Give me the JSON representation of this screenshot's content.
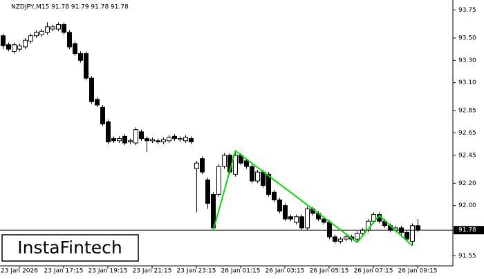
{
  "chart_data": {
    "type": "candlestick",
    "title": "NZDJPY,M15  91.78 91.79 91.78 91.78",
    "logo": "InstaFintech",
    "categories": [
      null,
      null,
      null,
      "23 Jan 2026",
      null,
      null,
      null,
      null,
      null,
      null,
      null,
      "23 Jan 17:15",
      null,
      null,
      null,
      null,
      null,
      null,
      null,
      "23 Jan 19:15",
      null,
      null,
      null,
      null,
      null,
      null,
      null,
      "23 Jan 21:15",
      null,
      null,
      null,
      null,
      null,
      null,
      null,
      "23 Jan 23:15",
      null,
      null,
      null,
      null,
      null,
      null,
      null,
      "26 Jan 01:15",
      null,
      null,
      null,
      null,
      null,
      null,
      null,
      "26 Jan 03:15",
      null,
      null,
      null,
      null,
      null,
      null,
      null,
      "26 Jan 05:15",
      null,
      null,
      null,
      null,
      null,
      null,
      null,
      "26 Jan 07:15",
      null,
      null,
      null,
      null,
      null,
      null,
      null,
      "26 Jan 09:15"
    ],
    "open": [
      93.52,
      93.44,
      93.38,
      93.4,
      93.42,
      93.47,
      93.52,
      93.53,
      93.55,
      93.58,
      93.58,
      93.62,
      93.55,
      93.45,
      93.36,
      93.36,
      93.14,
      92.95,
      92.88,
      92.75,
      92.6,
      92.58,
      92.62,
      92.57,
      92.56,
      92.66,
      92.6,
      92.58,
      92.58,
      92.57,
      92.58,
      92.62,
      92.59,
      92.58,
      92.6,
      92.33,
      92.42,
      92.23,
      92.1,
      92.1,
      92.35,
      92.45,
      92.28,
      92.45,
      92.4,
      92.35,
      92.22,
      92.3,
      92.28,
      92.12,
      92.05,
      92.0,
      91.9,
      91.85,
      91.9,
      91.8,
      91.97,
      91.93,
      91.88,
      91.85,
      91.72,
      91.68,
      91.7,
      91.72,
      91.7,
      91.75,
      91.78,
      91.86,
      91.92,
      91.86,
      91.82,
      91.78,
      91.8,
      91.76,
      91.68,
      91.82
    ],
    "high": [
      93.54,
      93.46,
      93.46,
      93.45,
      93.5,
      93.54,
      93.57,
      93.58,
      93.64,
      93.62,
      93.64,
      93.64,
      93.57,
      93.47,
      93.38,
      93.38,
      93.16,
      92.97,
      92.9,
      92.77,
      92.62,
      92.62,
      92.64,
      92.6,
      92.7,
      92.68,
      92.62,
      92.61,
      92.6,
      92.61,
      92.63,
      92.64,
      92.62,
      92.63,
      92.62,
      92.4,
      92.44,
      92.25,
      92.12,
      92.37,
      92.47,
      92.47,
      92.49,
      92.47,
      92.42,
      92.37,
      92.32,
      92.32,
      92.3,
      92.14,
      92.07,
      92.02,
      91.92,
      91.92,
      91.92,
      91.99,
      91.99,
      91.95,
      91.9,
      91.87,
      91.74,
      91.72,
      91.74,
      91.74,
      91.77,
      91.8,
      91.88,
      91.94,
      91.94,
      91.88,
      91.84,
      91.82,
      91.82,
      91.78,
      91.84,
      91.88
    ],
    "low": [
      93.4,
      93.38,
      93.36,
      93.38,
      93.4,
      93.45,
      93.5,
      93.51,
      93.53,
      93.56,
      93.56,
      93.53,
      93.4,
      93.34,
      93.28,
      93.12,
      92.91,
      92.88,
      92.71,
      92.55,
      92.56,
      92.56,
      92.54,
      92.55,
      92.54,
      92.58,
      92.48,
      92.56,
      92.55,
      92.55,
      92.56,
      92.58,
      92.57,
      92.56,
      92.55,
      91.94,
      92.28,
      91.97,
      91.78,
      92.08,
      92.33,
      92.28,
      92.26,
      92.36,
      92.33,
      92.2,
      92.2,
      92.16,
      92.08,
      92.03,
      91.93,
      91.86,
      91.86,
      91.83,
      91.78,
      91.78,
      91.91,
      91.86,
      91.83,
      91.7,
      91.66,
      91.66,
      91.68,
      91.68,
      91.68,
      91.73,
      91.76,
      91.84,
      91.84,
      91.8,
      91.76,
      91.76,
      91.74,
      91.68,
      91.64,
      91.76
    ],
    "close": [
      93.43,
      93.4,
      93.44,
      93.43,
      93.48,
      93.52,
      93.55,
      93.56,
      93.6,
      93.6,
      93.62,
      93.55,
      93.42,
      93.36,
      93.3,
      93.14,
      92.93,
      92.9,
      92.73,
      92.57,
      92.58,
      92.6,
      92.56,
      92.58,
      92.68,
      92.6,
      92.58,
      92.59,
      92.57,
      92.59,
      92.61,
      92.6,
      92.6,
      92.61,
      92.57,
      92.38,
      92.3,
      92.02,
      91.8,
      92.35,
      92.45,
      92.3,
      92.45,
      92.38,
      92.35,
      92.22,
      92.3,
      92.18,
      92.1,
      92.05,
      91.95,
      91.88,
      91.88,
      91.9,
      91.8,
      91.97,
      91.93,
      91.88,
      91.85,
      91.72,
      91.68,
      91.7,
      91.72,
      91.7,
      91.75,
      91.78,
      91.86,
      91.92,
      91.86,
      91.82,
      91.78,
      91.8,
      91.76,
      91.7,
      91.82,
      91.78
    ],
    "pattern": {
      "color": "#00dd00",
      "x": [
        38,
        42,
        64,
        68,
        74
      ],
      "values": [
        91.78,
        92.49,
        91.67,
        91.91,
        91.64
      ]
    },
    "last_price": 91.78,
    "ylim": [
      91.46,
      93.84
    ],
    "yticks": [
      93.75,
      {
        "value": 93.5,
        "label": "93.50"
      },
      {
        "value": 93.3,
        "label": "93.30"
      },
      {
        "value": 93.1,
        "label": "93.10"
      },
      92.85,
      92.65,
      92.45,
      {
        "value": 92.2,
        "label": "92.20"
      },
      {
        "value": 92.0,
        "label": "92.00"
      },
      91.55
    ]
  }
}
